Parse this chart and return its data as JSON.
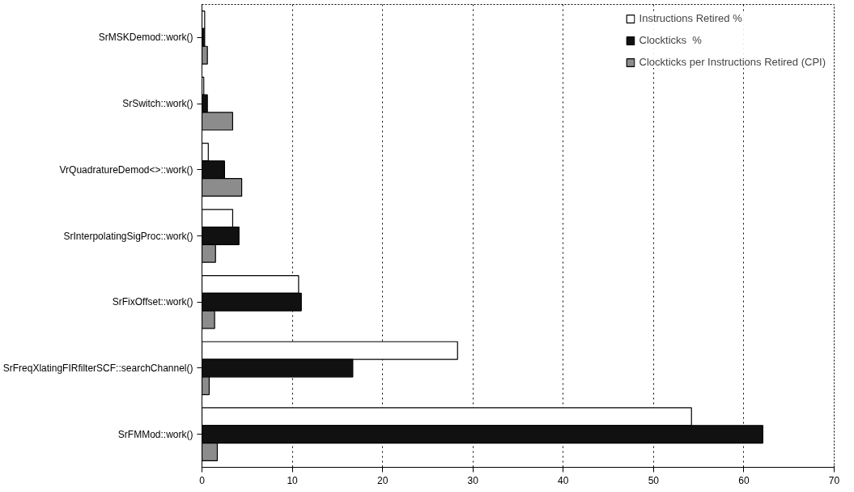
{
  "chart_data": {
    "type": "bar",
    "orientation": "horizontal",
    "categories": [
      "SrMSKDemod::work()",
      "SrSwitch::work()",
      "VrQuadratureDemod<>::work()",
      "SrInterpolatingSigProc::work()",
      "SrFixOffset::work()",
      "SrFreqXlatingFIRfilterSCF::searchChannel()",
      "SrFMMod::work()"
    ],
    "series": [
      {
        "name": "Instructions Retired %",
        "color": "#ffffff",
        "values": [
          0.3,
          0.2,
          0.7,
          3.4,
          10.7,
          28.3,
          54.2
        ]
      },
      {
        "name": "Clockticks  %",
        "color": "#111111",
        "values": [
          0.3,
          0.6,
          2.5,
          4.1,
          11.0,
          16.7,
          62.1
        ]
      },
      {
        "name": "Clockticks per Instructions Retired (CPI)",
        "color": "#8c8c8c",
        "values": [
          0.6,
          3.4,
          4.4,
          1.5,
          1.4,
          0.8,
          1.7
        ]
      }
    ],
    "xlim": [
      0,
      70
    ],
    "xticks": [
      0,
      10,
      20,
      30,
      40,
      50,
      60,
      70
    ],
    "grid": "x",
    "legend": "top right"
  }
}
